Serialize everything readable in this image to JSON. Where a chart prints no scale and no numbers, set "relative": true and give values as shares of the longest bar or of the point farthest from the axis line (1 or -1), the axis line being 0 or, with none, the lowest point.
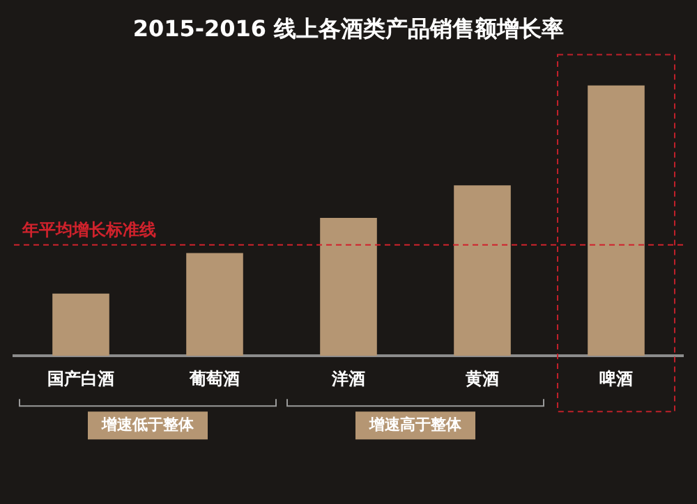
{
  "chart_data": {
    "type": "bar",
    "title": "2015-2016 线上各酒类产品销售额增长率",
    "categories": [
      "国产白酒",
      "葡萄酒",
      "洋酒",
      "黄酒",
      "啤酒"
    ],
    "values": [
      0.23,
      0.38,
      0.51,
      0.63,
      1
    ],
    "color": "#b59673",
    "relative": true,
    "legend": false,
    "ref_lines": [
      {
        "axis": "y",
        "value": 0.41,
        "label": "年平均增长标准线",
        "color": "#d0222c",
        "line_style": "dashed"
      }
    ],
    "annotations": [
      "增速低于整体",
      "增速高于整体"
    ]
  }
}
